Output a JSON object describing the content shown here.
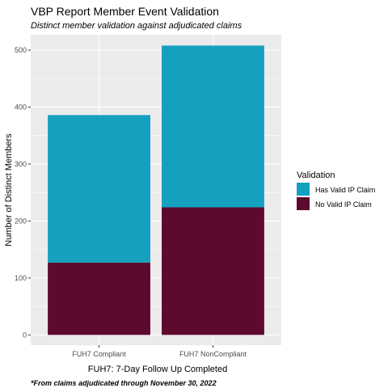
{
  "chart_data": {
    "type": "bar",
    "stacked": true,
    "title": "VBP Report Member Event Validation",
    "subtitle": "Distinct member validation against adjudicated claims",
    "xlabel": "FUH7: 7-Day Follow Up Completed",
    "ylabel": "Number of Distinct Members",
    "caption": "*From claims adjudicated through November 30, 2022",
    "categories": [
      "FUH7 Compliant",
      "FUH7 NonCompliant"
    ],
    "series": [
      {
        "name": "No Valid IP Claim",
        "values": [
          127,
          224
        ],
        "color": "#5d0a2e"
      },
      {
        "name": "Has Valid IP Claim",
        "values": [
          259,
          284
        ],
        "color": "#15a0c0"
      }
    ],
    "ylim": [
      -18,
      527
    ],
    "yticks": [
      0,
      100,
      200,
      300,
      400,
      500
    ],
    "grid": true,
    "legend": {
      "title": "Validation",
      "placement": "right",
      "entries": [
        {
          "label": "Has Valid IP Claim",
          "color": "#15a0c0"
        },
        {
          "label": "No Valid IP Claim",
          "color": "#5d0a2e"
        }
      ]
    },
    "panel_background": "#ebebeb"
  }
}
